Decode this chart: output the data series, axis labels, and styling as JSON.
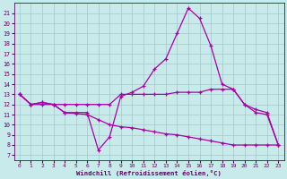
{
  "xlabel": "Windchill (Refroidissement éolien,°C)",
  "background_color": "#c8eaea",
  "grid_color": "#a0c8c8",
  "line_color": "#aa00aa",
  "spine_color": "#660066",
  "x_ticks": [
    0,
    1,
    2,
    3,
    4,
    5,
    6,
    7,
    8,
    9,
    10,
    11,
    12,
    13,
    14,
    15,
    16,
    17,
    18,
    19,
    20,
    21,
    22,
    23
  ],
  "y_ticks": [
    7,
    8,
    9,
    10,
    11,
    12,
    13,
    14,
    15,
    16,
    17,
    18,
    19,
    20,
    21
  ],
  "ylim": [
    6.5,
    22.0
  ],
  "xlim": [
    -0.5,
    23.5
  ],
  "line1_x": [
    0,
    1,
    2,
    3,
    4,
    5,
    6,
    7,
    8,
    9,
    10,
    11,
    12,
    13,
    14,
    15,
    16,
    17,
    18,
    19,
    20,
    21,
    22,
    23
  ],
  "line1_y": [
    13.0,
    12.0,
    12.0,
    12.0,
    11.2,
    11.2,
    11.2,
    7.5,
    8.8,
    12.8,
    13.2,
    13.8,
    15.5,
    16.5,
    19.0,
    21.5,
    20.5,
    17.8,
    14.0,
    13.5,
    12.0,
    11.2,
    11.0,
    8.0
  ],
  "line2_x": [
    0,
    1,
    2,
    3,
    4,
    5,
    6,
    7,
    8,
    9,
    10,
    11,
    12,
    13,
    14,
    15,
    16,
    17,
    18,
    19,
    20,
    21,
    22,
    23
  ],
  "line2_y": [
    13.0,
    12.0,
    12.2,
    12.0,
    11.2,
    11.1,
    11.0,
    10.5,
    10.0,
    9.8,
    9.7,
    9.5,
    9.3,
    9.1,
    9.0,
    8.8,
    8.6,
    8.4,
    8.2,
    8.0,
    8.0,
    8.0,
    8.0,
    8.0
  ],
  "line3_x": [
    0,
    1,
    2,
    3,
    4,
    5,
    6,
    7,
    8,
    9,
    10,
    11,
    12,
    13,
    14,
    15,
    16,
    17,
    18,
    19,
    20,
    21,
    22,
    23
  ],
  "line3_y": [
    13.0,
    12.0,
    12.2,
    12.0,
    12.0,
    12.0,
    12.0,
    12.0,
    12.0,
    13.0,
    13.0,
    13.0,
    13.0,
    13.0,
    13.2,
    13.2,
    13.2,
    13.5,
    13.5,
    13.5,
    12.0,
    11.5,
    11.2,
    8.0
  ]
}
